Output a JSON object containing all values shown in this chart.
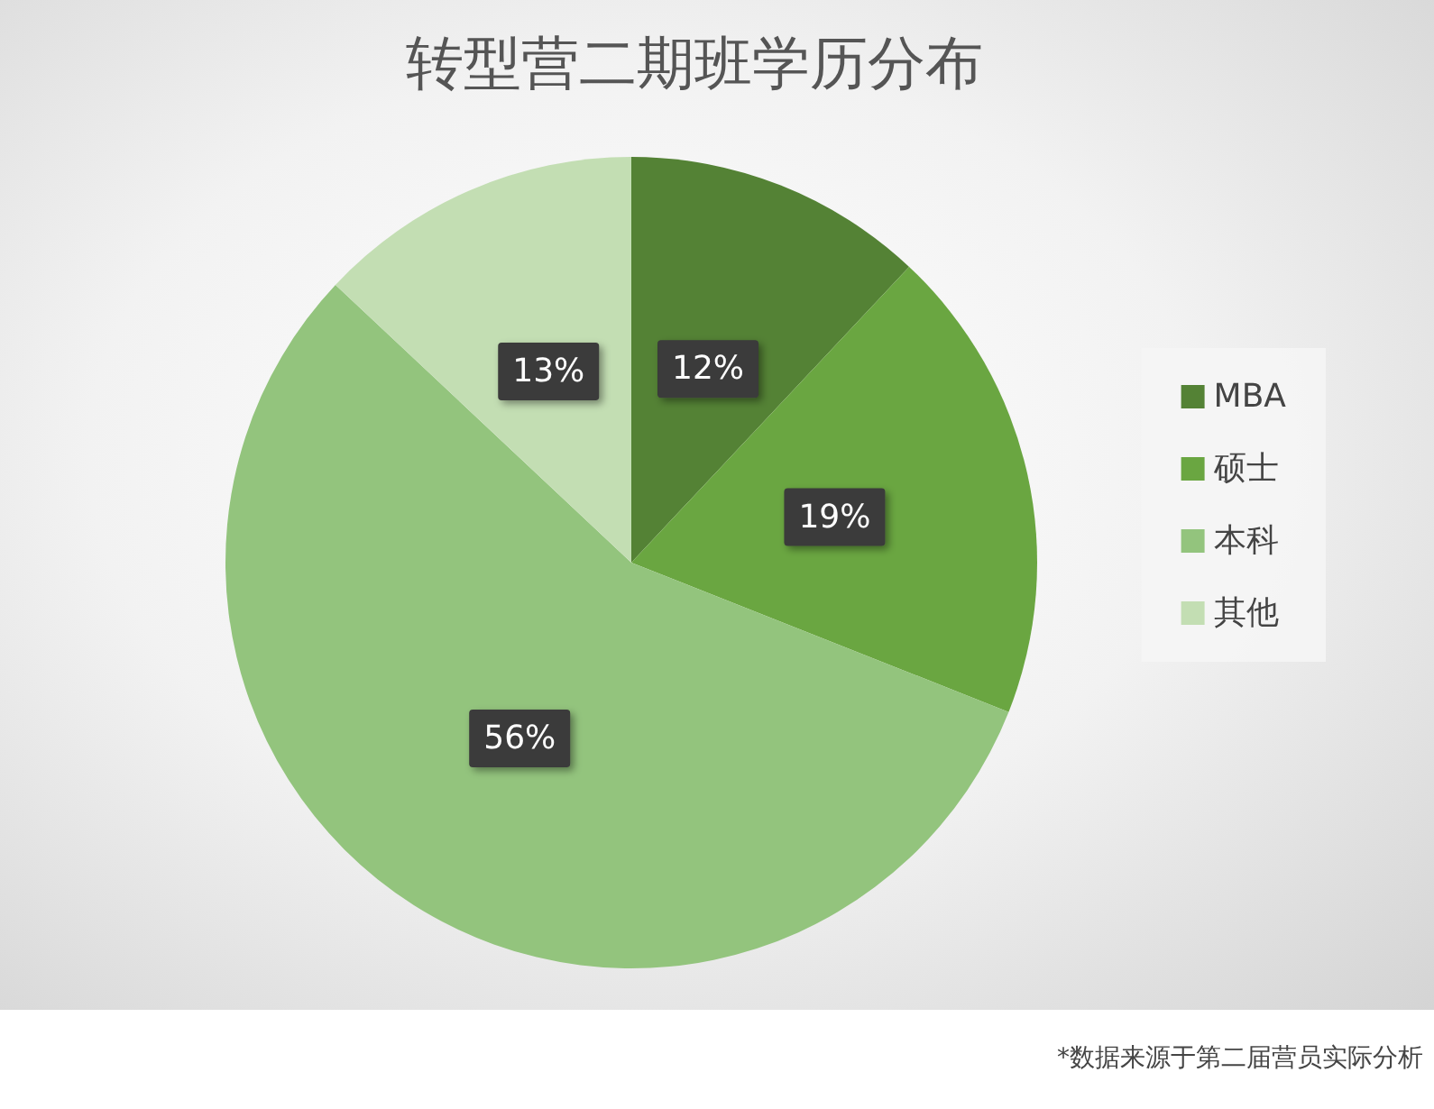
{
  "chart_data": {
    "type": "pie",
    "title": "转型营二期班学历分布",
    "categories": [
      "MBA",
      "硕士",
      "本科",
      "其他"
    ],
    "values": [
      12,
      19,
      56,
      13
    ],
    "colors": [
      "#548235",
      "#6aa641",
      "#93c47d",
      "#c3deb3"
    ],
    "value_labels": [
      "12%",
      "19%",
      "56%",
      "13%"
    ],
    "legend": "right",
    "annotations": [
      "*数据来源于第二届营员实际分析"
    ]
  }
}
